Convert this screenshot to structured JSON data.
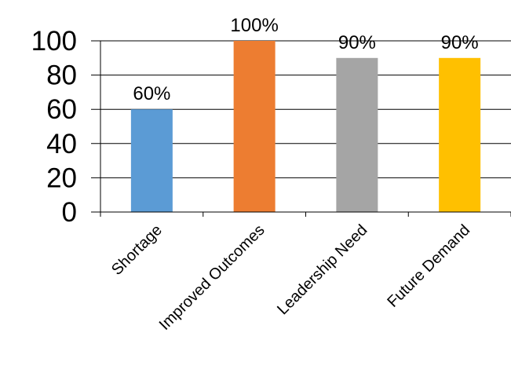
{
  "chart_data": {
    "type": "bar",
    "categories": [
      "Shortage",
      "Improved Outcomes",
      "Leadership Need",
      "Future Demand"
    ],
    "values": [
      60,
      100,
      90,
      90
    ],
    "data_labels": [
      "60%",
      "100%",
      "90%",
      "90%"
    ],
    "colors": [
      "#5b9bd5",
      "#ed7d31",
      "#a5a5a5",
      "#ffc000"
    ],
    "ylim": [
      0,
      100
    ],
    "yticks": [
      "0",
      "20",
      "40",
      "60",
      "80",
      "100"
    ],
    "grid": true,
    "legend": "none"
  }
}
